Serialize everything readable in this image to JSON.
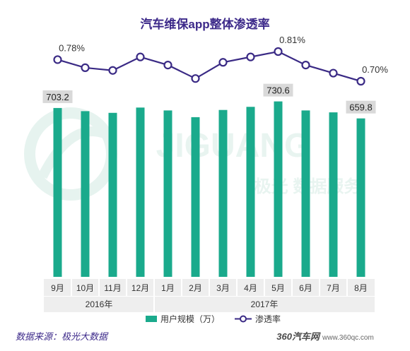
{
  "chart_data": {
    "type": "bar",
    "title": "汽车维保app整体渗透率",
    "categories": [
      "9月",
      "10月",
      "11月",
      "12月",
      "1月",
      "2月",
      "3月",
      "4月",
      "5月",
      "6月",
      "7月",
      "8月"
    ],
    "year_groups": [
      {
        "label": "2016年",
        "span": 4
      },
      {
        "label": "2017年",
        "span": 8
      }
    ],
    "series": [
      {
        "name": "用户规模（万）",
        "type": "bar",
        "color": "#1aaa8c",
        "values": [
          703.2,
          690,
          683,
          705,
          693,
          665,
          695,
          708,
          730.6,
          693,
          685,
          659.8
        ]
      },
      {
        "name": "渗透率",
        "type": "line",
        "color": "#3a2a85",
        "unit": "%",
        "values": [
          0.78,
          0.75,
          0.74,
          0.79,
          0.76,
          0.71,
          0.77,
          0.79,
          0.81,
          0.76,
          0.73,
          0.7
        ]
      }
    ],
    "bar_labels": [
      {
        "index": 0,
        "text": "703.2"
      },
      {
        "index": 8,
        "text": "730.6"
      },
      {
        "index": 11,
        "text": "659.8"
      }
    ],
    "line_labels": [
      {
        "index": 0,
        "text": "0.78%"
      },
      {
        "index": 8,
        "text": "0.81%"
      },
      {
        "index": 11,
        "text": "0.70%"
      }
    ],
    "legend": {
      "position": "bottom"
    }
  },
  "source_note": "数据来源：极光大数据",
  "watermark": {
    "text": "JIGUANG",
    "subtext": "极光  数据服务"
  },
  "brand": {
    "logo": "360汽车网",
    "url": "www.360qc.com"
  }
}
